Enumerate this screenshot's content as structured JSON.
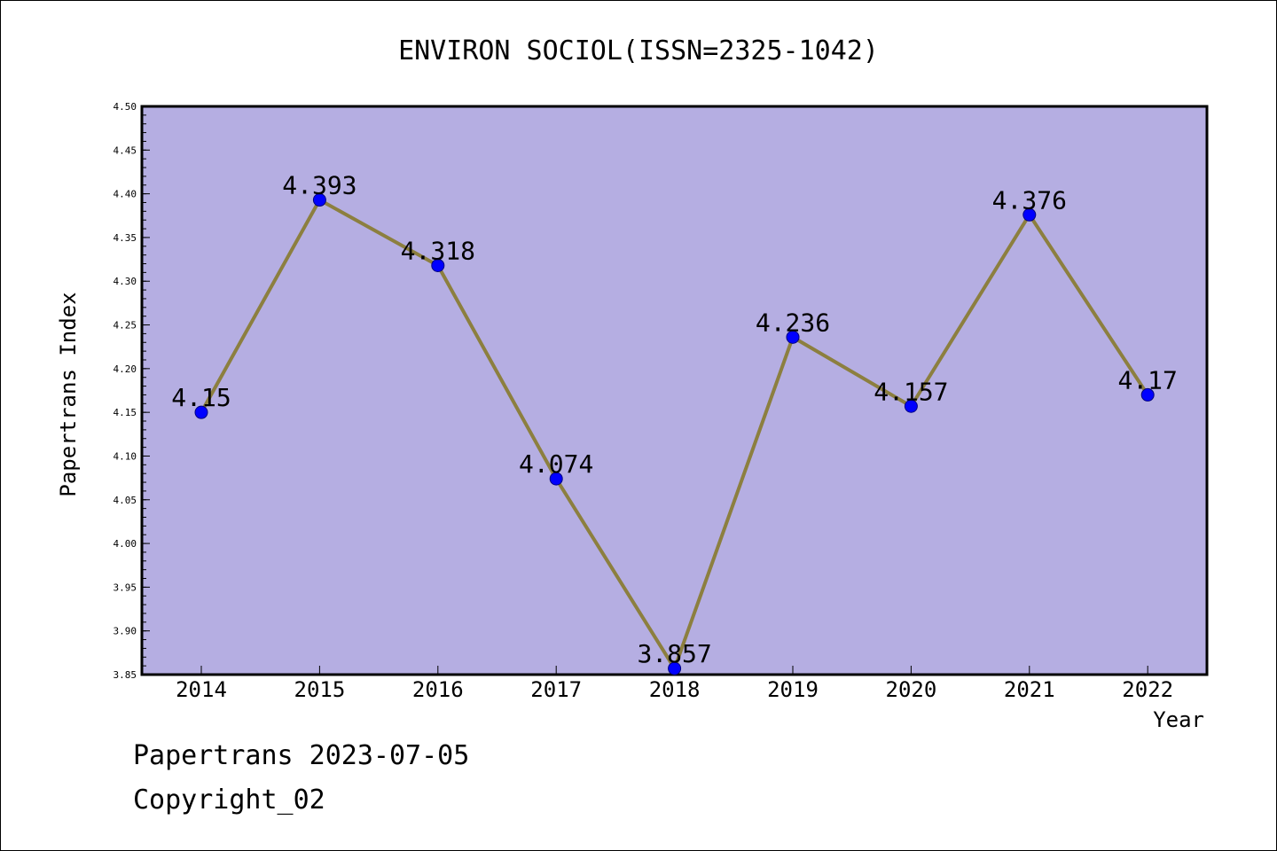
{
  "footer": {
    "line1": "Papertrans 2023-07-05",
    "line2": "Copyright_02"
  },
  "colors": {
    "plot_background": "#b5aee2",
    "line": "#8c7f3f",
    "marker": "#0000ff",
    "marker_edge": "#000080",
    "axis": "#000000"
  },
  "chart_data": {
    "type": "line",
    "title": "ENVIRON SOCIOL(ISSN=2325-1042)",
    "xlabel": "Year",
    "ylabel": "Papertrans Index",
    "x": [
      "2014",
      "2015",
      "2016",
      "2017",
      "2018",
      "2019",
      "2020",
      "2021",
      "2022"
    ],
    "series": [
      {
        "values": [
          4.15,
          4.393,
          4.318,
          4.074,
          3.857,
          4.236,
          4.157,
          4.376,
          4.17
        ],
        "labels": [
          "4.15",
          "4.393",
          "4.318",
          "4.074",
          "3.857",
          "4.236",
          "4.157",
          "4.376",
          "4.17"
        ]
      }
    ],
    "ylim": [
      3.85,
      4.5
    ],
    "yticks": [
      "3.85",
      "3.90",
      "3.95",
      "4.00",
      "4.05",
      "4.10",
      "4.15",
      "4.20",
      "4.25",
      "4.30",
      "4.35",
      "4.40",
      "4.45",
      "4.50"
    ],
    "grid": false,
    "legend": "none"
  }
}
